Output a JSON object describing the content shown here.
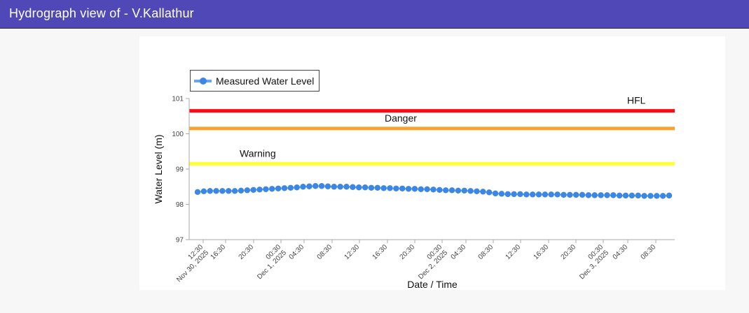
{
  "header": {
    "title": "Hydrograph view of - V.Kallathur"
  },
  "legend": {
    "label": "Measured Water Level"
  },
  "colors": {
    "header_bg": "#5048b6",
    "series": "#3b87e3",
    "hfl": "#ff0a14",
    "danger": "#f4a334",
    "warning": "#ffff33"
  },
  "chart_data": {
    "type": "line",
    "xlabel": "Date / Time",
    "ylabel": "Water Level (m)",
    "ylim": [
      97,
      101
    ],
    "yticks": [
      "97",
      "98",
      "99",
      "100",
      "101"
    ],
    "xticks": [
      "12:30",
      "Nov 30, 2025",
      "16:30",
      "20:30",
      "00:30",
      "Dec 1, 2025",
      "04:30",
      "08:30",
      "12:30",
      "16:30",
      "20:30",
      "00:30",
      "Dec 2, 2025",
      "04:30",
      "08:30",
      "12:30",
      "16:30",
      "20:30",
      "00:30",
      "Dec 3, 2025",
      "04:30",
      "08:30"
    ],
    "thresholds": [
      {
        "name": "HFL",
        "value": 100.65,
        "color": "#ff0a14"
      },
      {
        "name": "Danger",
        "value": 100.15,
        "color": "#f4a334"
      },
      {
        "name": "Warning",
        "value": 99.15,
        "color": "#ffff33"
      }
    ],
    "series": [
      {
        "name": "Measured Water Level",
        "values": [
          98.35,
          98.37,
          98.38,
          98.38,
          98.38,
          98.38,
          98.38,
          98.39,
          98.4,
          98.41,
          98.42,
          98.43,
          98.44,
          98.45,
          98.46,
          98.47,
          98.48,
          98.5,
          98.51,
          98.52,
          98.52,
          98.51,
          98.5,
          98.5,
          98.5,
          98.49,
          98.48,
          98.48,
          98.47,
          98.47,
          98.46,
          98.46,
          98.45,
          98.45,
          98.44,
          98.44,
          98.43,
          98.43,
          98.42,
          98.41,
          98.4,
          98.4,
          98.39,
          98.39,
          98.38,
          98.37,
          98.36,
          98.34,
          98.31,
          98.3,
          98.29,
          98.29,
          98.29,
          98.28,
          98.28,
          98.28,
          98.28,
          98.28,
          98.28,
          98.27,
          98.27,
          98.27,
          98.27,
          98.26,
          98.26,
          98.26,
          98.26,
          98.26,
          98.25,
          98.25,
          98.25,
          98.25,
          98.24,
          98.24,
          98.24,
          98.24,
          98.25
        ]
      }
    ],
    "legend_position": "top-left",
    "grid": false
  }
}
